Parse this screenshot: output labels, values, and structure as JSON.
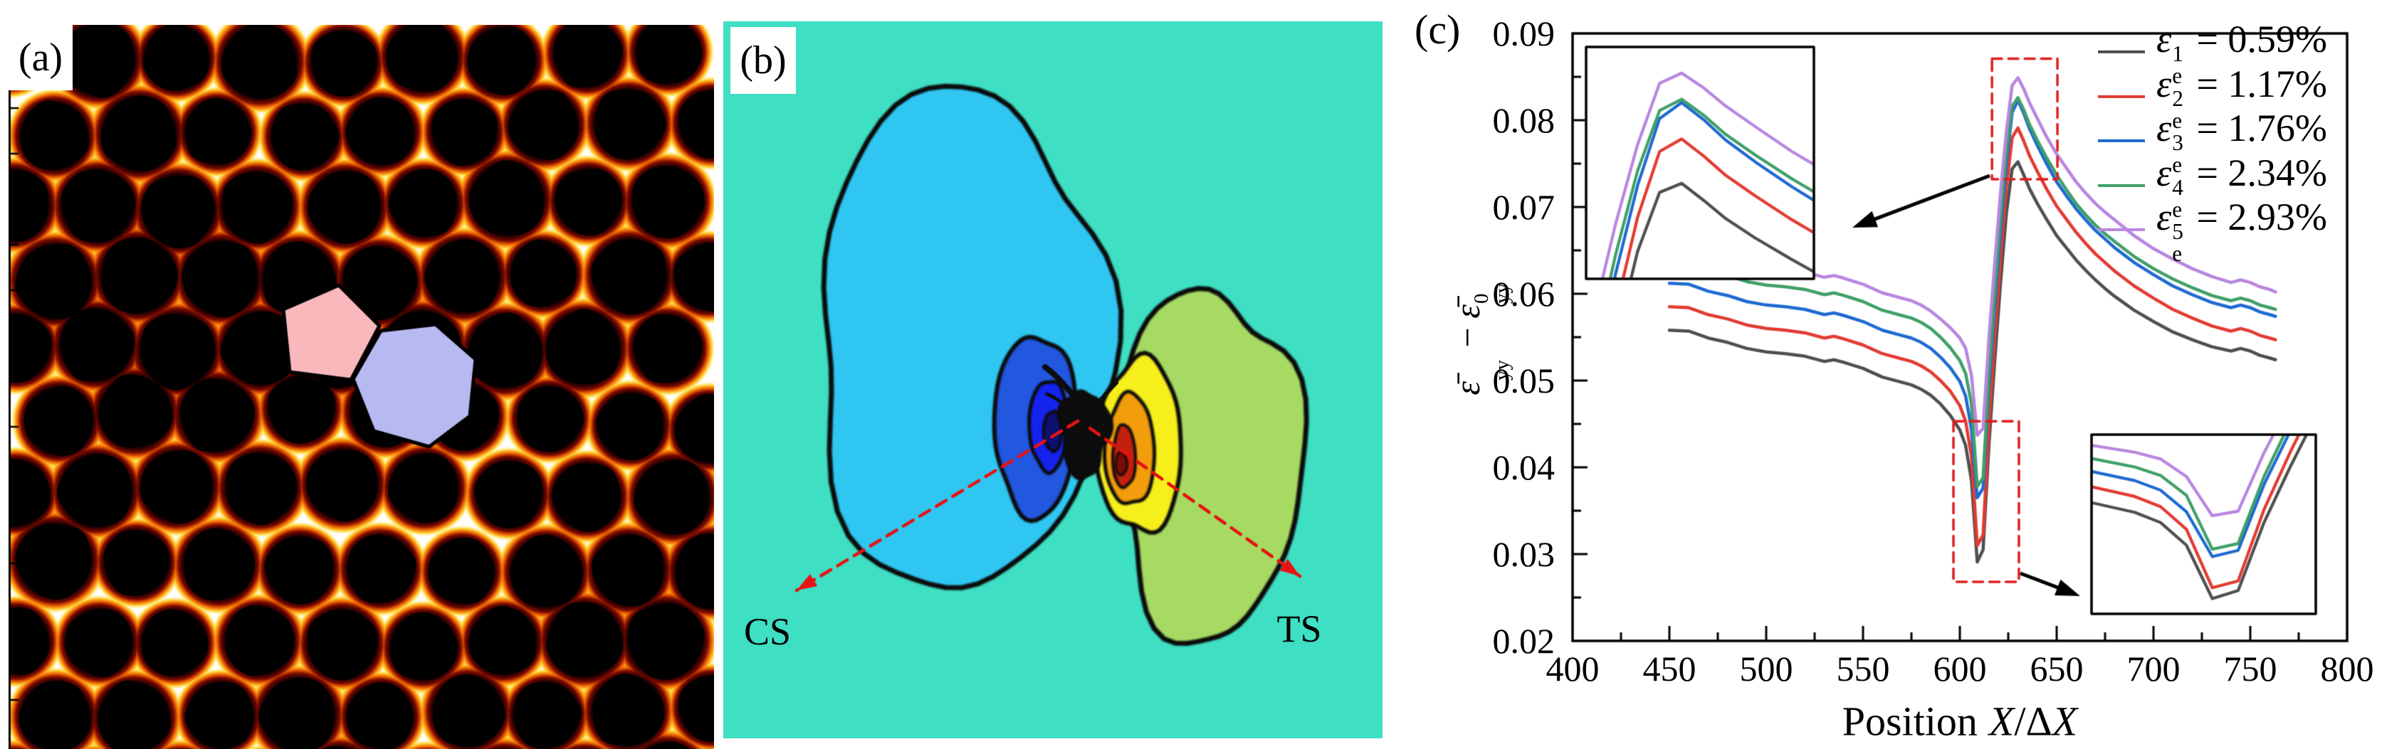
{
  "panel_a": {
    "label": "(a)",
    "lattice": {
      "background": "#ffffff",
      "particle_color": "#000000",
      "glow_colors": [
        "#7E0C00",
        "#EE6300",
        "#FFD83C"
      ],
      "rows": 11,
      "cols": 9,
      "pitch_x": 115,
      "pitch_y": 102.5,
      "radius": 52
    },
    "defect": {
      "pentagon_color": "#F9B9BC",
      "heptagon_color": "#B7B9F1",
      "outline_color": "#000000"
    }
  },
  "panel_b": {
    "label": "(b)",
    "cs_label": "CS",
    "ts_label": "TS",
    "arrow_color": "#E81212",
    "colors": {
      "background": "#3EDFC3",
      "compression_outer": "#2FC7F2",
      "compression_mid": "#2257E0",
      "compression_inner": "#1423EE",
      "compression_core": "#0E1070",
      "tension_outer": "#A6DA62",
      "tension_mid": "#F7EF1C",
      "tension_inner": "#F29D0B",
      "tension_core": "#C3200E",
      "tension_core_dark": "#7A0D07",
      "contour_line": "#0B0B0B"
    }
  },
  "panel_c": {
    "label": "(c)",
    "xlabel": {
      "prefix": "Position",
      "x1": "X",
      "slash": "/",
      "delta": "Δ",
      "x2": "X"
    },
    "ylabel": {
      "eps_bar": "ε̄",
      "sub": "yy",
      "minus": "−",
      "sup": "0"
    },
    "x_tick_labels": [
      "400",
      "450",
      "500",
      "550",
      "600",
      "650",
      "700",
      "750",
      "800"
    ],
    "y_tick_labels": [
      "0.09",
      "0.08",
      "0.07",
      "0.06",
      "0.05",
      "0.04",
      "0.03",
      "0.02"
    ],
    "legend": [
      {
        "symbol": "ε",
        "sub": "e",
        "sup": "1",
        "eq": "=",
        "value": "0.59%",
        "color": "#4F4F4F"
      },
      {
        "symbol": "ε",
        "sub": "e",
        "sup": "2",
        "eq": "=",
        "value": "1.17%",
        "color": "#E23B32"
      },
      {
        "symbol": "ε",
        "sub": "e",
        "sup": "3",
        "eq": "=",
        "value": "1.76%",
        "color": "#1F6AD1"
      },
      {
        "symbol": "ε",
        "sub": "e",
        "sup": "4",
        "eq": "=",
        "value": "2.34%",
        "color": "#3FA068"
      },
      {
        "symbol": "ε",
        "sub": "e",
        "sup": "5",
        "eq": "=",
        "value": "2.93%",
        "color": "#B886E0"
      }
    ]
  },
  "chart_data": {
    "type": "line",
    "title": "",
    "xlabel": "Position X/ΔX",
    "ylabel": "ε̄yy − ε̄⁰yy",
    "xlim": [
      400,
      800
    ],
    "ylim": [
      0.02,
      0.09
    ],
    "x_major_tick": 50,
    "x_minor_tick": 25,
    "y_major_tick": 0.01,
    "y_minor_tick": 0.005,
    "grid": false,
    "legend_position": "top-right",
    "x": [
      450,
      460,
      470,
      480,
      490,
      500,
      510,
      520,
      530,
      535,
      540,
      550,
      560,
      570,
      575,
      580,
      585,
      590,
      595,
      600,
      603,
      606,
      609,
      612,
      615,
      618,
      621,
      624,
      627,
      630,
      633,
      636,
      640,
      645,
      650,
      655,
      660,
      665,
      670,
      675,
      680,
      690,
      700,
      710,
      720,
      730,
      740,
      745,
      750,
      755,
      760,
      763
    ],
    "series": [
      {
        "name": "eps_e_1",
        "label": "εe1 = 0.59%",
        "color": "#4F4F4F",
        "y": [
          0.0558,
          0.0557,
          0.0549,
          0.0544,
          0.0537,
          0.0533,
          0.0531,
          0.0528,
          0.0522,
          0.0524,
          0.0521,
          0.0514,
          0.0504,
          0.0498,
          0.0495,
          0.049,
          0.0483,
          0.0473,
          0.046,
          0.0443,
          0.0425,
          0.0385,
          0.0291,
          0.0305,
          0.0425,
          0.0522,
          0.0612,
          0.0692,
          0.0744,
          0.0752,
          0.0737,
          0.0721,
          0.0704,
          0.0685,
          0.0667,
          0.0653,
          0.0639,
          0.0627,
          0.0616,
          0.0606,
          0.0597,
          0.0581,
          0.0568,
          0.0556,
          0.0547,
          0.0539,
          0.0534,
          0.0537,
          0.0534,
          0.0529,
          0.0526,
          0.0524
        ]
      },
      {
        "name": "eps_e_2",
        "label": "εe2 = 1.17%",
        "color": "#E23B32",
        "y": [
          0.0585,
          0.0584,
          0.0576,
          0.0571,
          0.0564,
          0.056,
          0.0558,
          0.0555,
          0.0549,
          0.0551,
          0.0548,
          0.0541,
          0.0531,
          0.0525,
          0.0522,
          0.0517,
          0.051,
          0.05,
          0.0488,
          0.0471,
          0.0453,
          0.0413,
          0.031,
          0.0322,
          0.0448,
          0.0548,
          0.064,
          0.0722,
          0.078,
          0.0791,
          0.0776,
          0.0759,
          0.0741,
          0.072,
          0.0701,
          0.0686,
          0.0671,
          0.0658,
          0.0646,
          0.0636,
          0.0626,
          0.0609,
          0.0595,
          0.0582,
          0.0572,
          0.0563,
          0.0557,
          0.056,
          0.0557,
          0.0552,
          0.0549,
          0.0547
        ]
      },
      {
        "name": "eps_e_3",
        "label": "εe3 = 1.76%",
        "color": "#1F6AD1",
        "y": [
          0.0612,
          0.0611,
          0.0603,
          0.0598,
          0.0591,
          0.0587,
          0.0585,
          0.0582,
          0.0576,
          0.0578,
          0.0575,
          0.0568,
          0.0558,
          0.0552,
          0.0549,
          0.0544,
          0.0537,
          0.0527,
          0.0515,
          0.0499,
          0.0482,
          0.0444,
          0.0365,
          0.0376,
          0.0492,
          0.0585,
          0.0672,
          0.075,
          0.0809,
          0.0823,
          0.0808,
          0.079,
          0.0771,
          0.0749,
          0.0729,
          0.0713,
          0.0698,
          0.0685,
          0.0673,
          0.0663,
          0.0653,
          0.0636,
          0.0622,
          0.0609,
          0.0599,
          0.059,
          0.0584,
          0.0587,
          0.0584,
          0.0579,
          0.0576,
          0.0574
        ]
      },
      {
        "name": "eps_e_4",
        "label": "εe4 = 2.34%",
        "color": "#3FA068",
        "y": [
          0.0635,
          0.0634,
          0.0626,
          0.0621,
          0.0614,
          0.061,
          0.0608,
          0.0605,
          0.0599,
          0.0601,
          0.0598,
          0.0591,
          0.0581,
          0.0575,
          0.0572,
          0.0567,
          0.056,
          0.055,
          0.0538,
          0.0523,
          0.0508,
          0.0473,
          0.0378,
          0.0388,
          0.0506,
          0.0601,
          0.0689,
          0.0763,
          0.0816,
          0.0826,
          0.0812,
          0.0795,
          0.0777,
          0.0756,
          0.0737,
          0.072,
          0.0704,
          0.0691,
          0.0679,
          0.0669,
          0.066,
          0.0643,
          0.0629,
          0.0617,
          0.0607,
          0.0598,
          0.0592,
          0.0595,
          0.0592,
          0.0587,
          0.0584,
          0.0582
        ]
      },
      {
        "name": "eps_e_5",
        "label": "εe5 = 2.93%",
        "color": "#B886E0",
        "y": [
          0.0655,
          0.0654,
          0.0646,
          0.0641,
          0.0634,
          0.063,
          0.0628,
          0.0625,
          0.0619,
          0.0621,
          0.0618,
          0.0611,
          0.0601,
          0.0595,
          0.0592,
          0.0587,
          0.058,
          0.0571,
          0.0561,
          0.0549,
          0.0537,
          0.0506,
          0.0437,
          0.0445,
          0.0548,
          0.0635,
          0.0716,
          0.0786,
          0.084,
          0.0849,
          0.0836,
          0.082,
          0.0802,
          0.078,
          0.0761,
          0.0745,
          0.0729,
          0.0716,
          0.0704,
          0.0694,
          0.0685,
          0.0667,
          0.0652,
          0.064,
          0.0629,
          0.062,
          0.0613,
          0.0616,
          0.0613,
          0.0608,
          0.0605,
          0.0602
        ]
      }
    ],
    "annotations": {
      "zoom_boxes_data": [
        {
          "x0": 616.6,
          "x1": 650.4,
          "y0": 0.0732,
          "y1": 0.0871
        },
        {
          "x0": 596.7,
          "x1": 630.5,
          "y0": 0.0268,
          "y1": 0.0453
        }
      ],
      "inset_windows": [
        {
          "x0": 617,
          "x1": 648,
          "y0": 0.0668,
          "y1": 0.0872
        },
        {
          "x0": 595,
          "x1": 621,
          "y0": 0.0264,
          "y1": 0.058
        }
      ]
    }
  }
}
